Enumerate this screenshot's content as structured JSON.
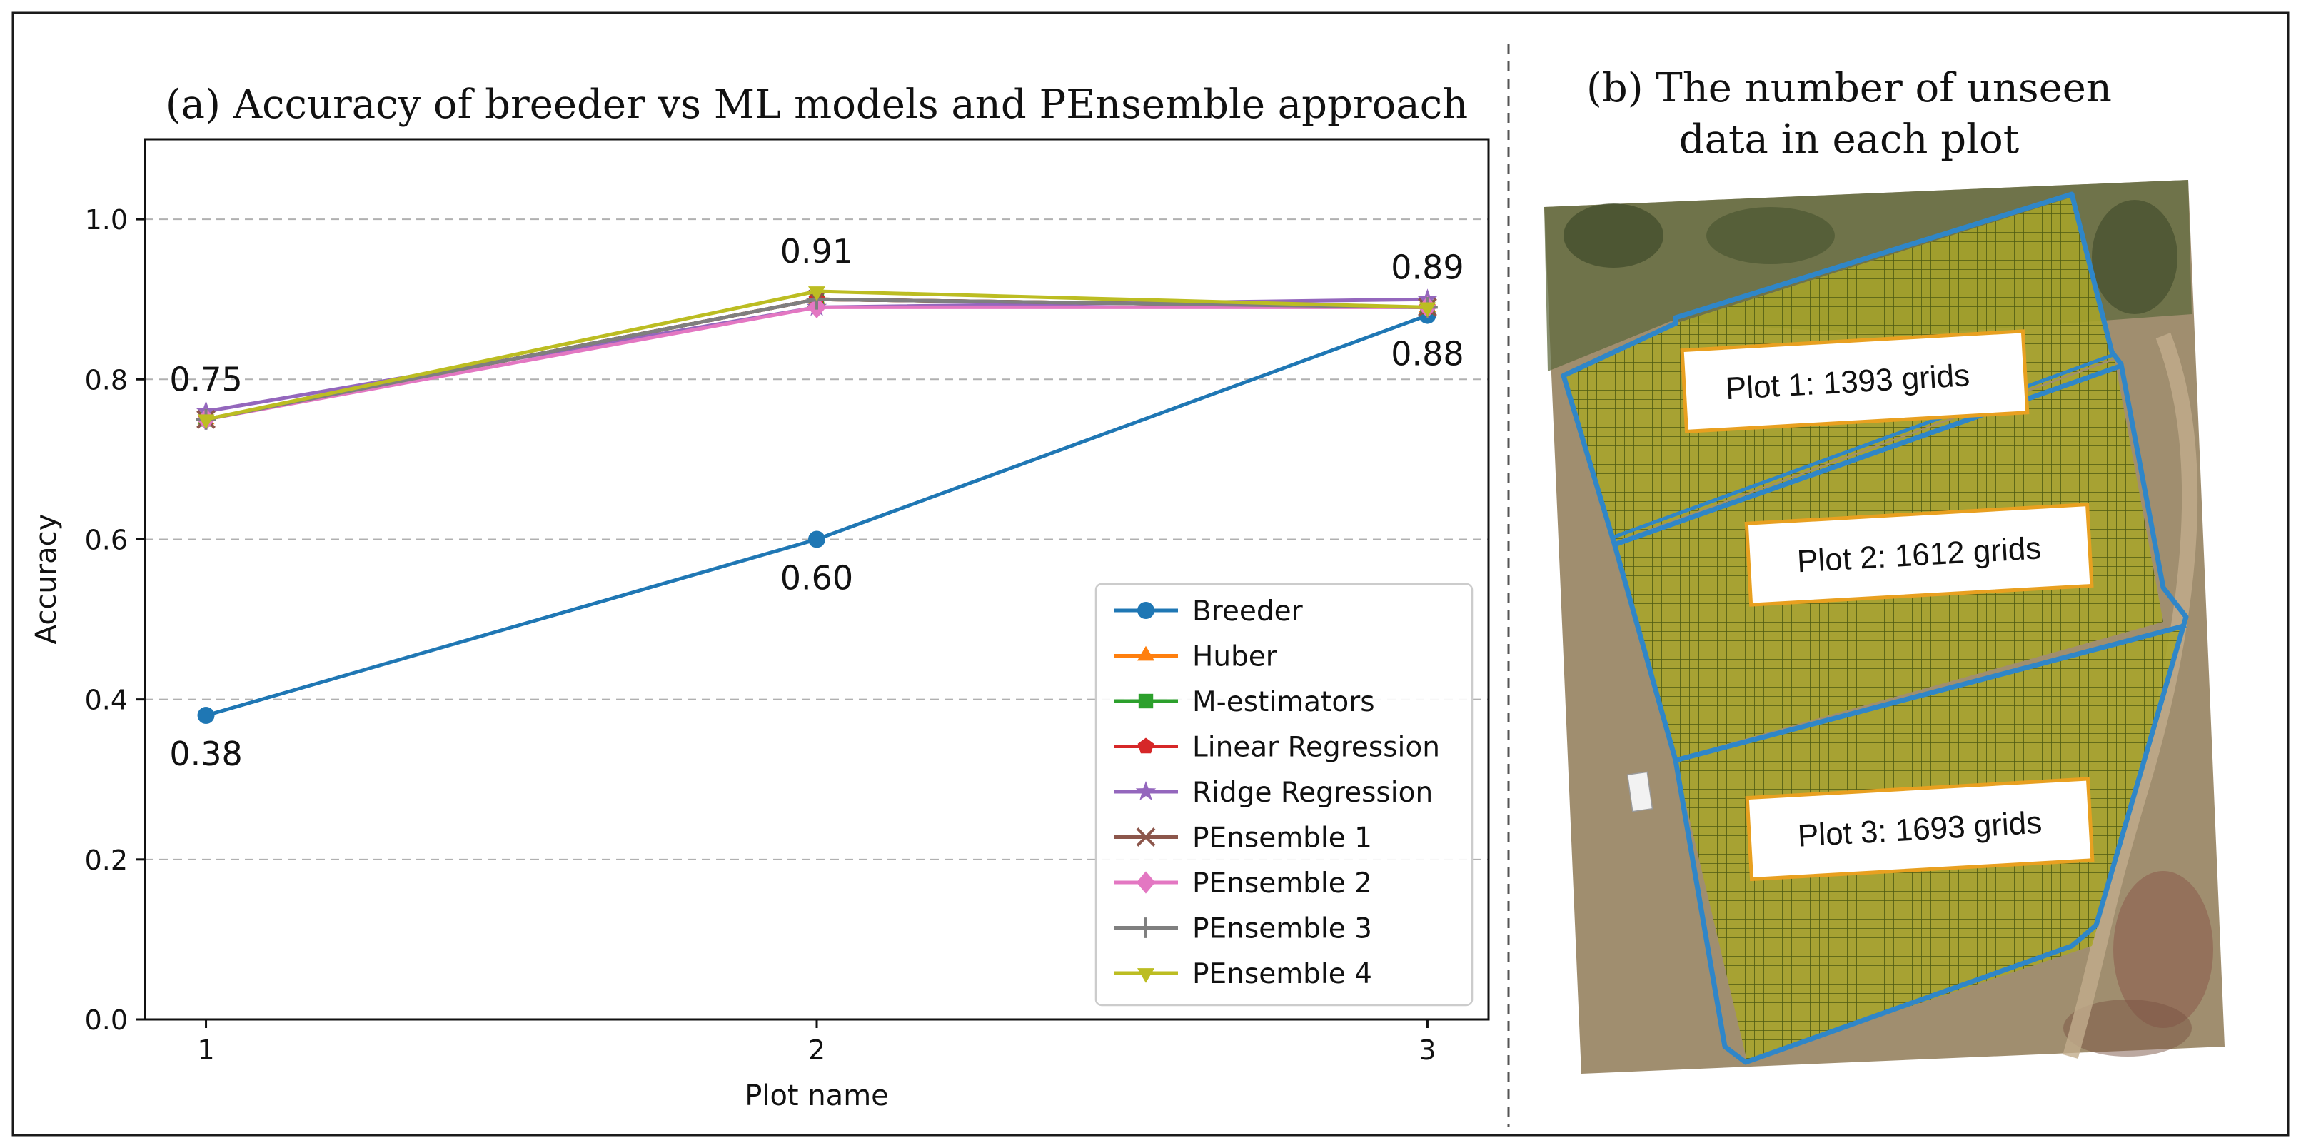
{
  "panel_a": {
    "title": "(a) Accuracy of breeder vs ML models and PEnsemble approach"
  },
  "panel_b": {
    "title_line1": "(b) The number of unseen",
    "title_line2": "data in each plot",
    "plot_labels": [
      "Plot 1: 1393 grids",
      "Plot 2: 1612 grids",
      "Plot 3: 1693 grids"
    ]
  },
  "colors": {
    "breeder": "#1f77b4",
    "huber": "#ff7f0e",
    "m_estimators": "#2ca02c",
    "linear_regression": "#d62728",
    "ridge_regression": "#9467bd",
    "pensemble1": "#8c564b",
    "pensemble2": "#e377c2",
    "pensemble3": "#7f7f7f",
    "pensemble4": "#bcbd22",
    "field_outline": "#2f86c8",
    "grid_fill": "#a7a626"
  },
  "chart_data": {
    "type": "line",
    "title": "(a) Accuracy of breeder vs ML models and PEnsemble approach",
    "xlabel": "Plot name",
    "ylabel": "Accuracy",
    "x": [
      1,
      2,
      3
    ],
    "x_tick_labels": [
      "1",
      "2",
      "3"
    ],
    "xlim": [
      0.9,
      3.1
    ],
    "ylim": [
      0.0,
      1.1
    ],
    "y_ticks": [
      0.0,
      0.2,
      0.4,
      0.6,
      0.8,
      1.0
    ],
    "y_tick_labels": [
      "0.0",
      "0.2",
      "0.4",
      "0.6",
      "0.8",
      "1.0"
    ],
    "grid": "horizontal dashed",
    "legend_position": "lower-right",
    "series": [
      {
        "name": "Breeder",
        "values": [
          0.38,
          0.6,
          0.88
        ],
        "marker": "circle",
        "color": "#1f77b4"
      },
      {
        "name": "Huber",
        "values": [
          0.75,
          0.9,
          0.89
        ],
        "marker": "triangle-up",
        "color": "#ff7f0e"
      },
      {
        "name": "M-estimators",
        "values": [
          0.75,
          0.9,
          0.89
        ],
        "marker": "square",
        "color": "#2ca02c"
      },
      {
        "name": "Linear Regression",
        "values": [
          0.75,
          0.9,
          0.89
        ],
        "marker": "pentagon",
        "color": "#d62728"
      },
      {
        "name": "Ridge Regression",
        "values": [
          0.76,
          0.89,
          0.9
        ],
        "marker": "star",
        "color": "#9467bd"
      },
      {
        "name": "PEnsemble 1",
        "values": [
          0.75,
          0.9,
          0.89
        ],
        "marker": "x",
        "color": "#8c564b"
      },
      {
        "name": "PEnsemble 2",
        "values": [
          0.75,
          0.89,
          0.89
        ],
        "marker": "diamond",
        "color": "#e377c2"
      },
      {
        "name": "PEnsemble 3",
        "values": [
          0.75,
          0.9,
          0.89
        ],
        "marker": "plus",
        "color": "#7f7f7f"
      },
      {
        "name": "PEnsemble 4",
        "values": [
          0.75,
          0.91,
          0.89
        ],
        "marker": "triangle-down",
        "color": "#bcbd22"
      }
    ],
    "annotations": [
      {
        "text": "0.75",
        "x": 1,
        "y": 0.75,
        "placement": "above"
      },
      {
        "text": "0.91",
        "x": 2,
        "y": 0.91,
        "placement": "above"
      },
      {
        "text": "0.89",
        "x": 3,
        "y": 0.89,
        "placement": "above"
      },
      {
        "text": "0.38",
        "x": 1,
        "y": 0.38,
        "placement": "below"
      },
      {
        "text": "0.60",
        "x": 2,
        "y": 0.6,
        "placement": "below"
      },
      {
        "text": "0.88",
        "x": 3,
        "y": 0.88,
        "placement": "below"
      }
    ]
  }
}
